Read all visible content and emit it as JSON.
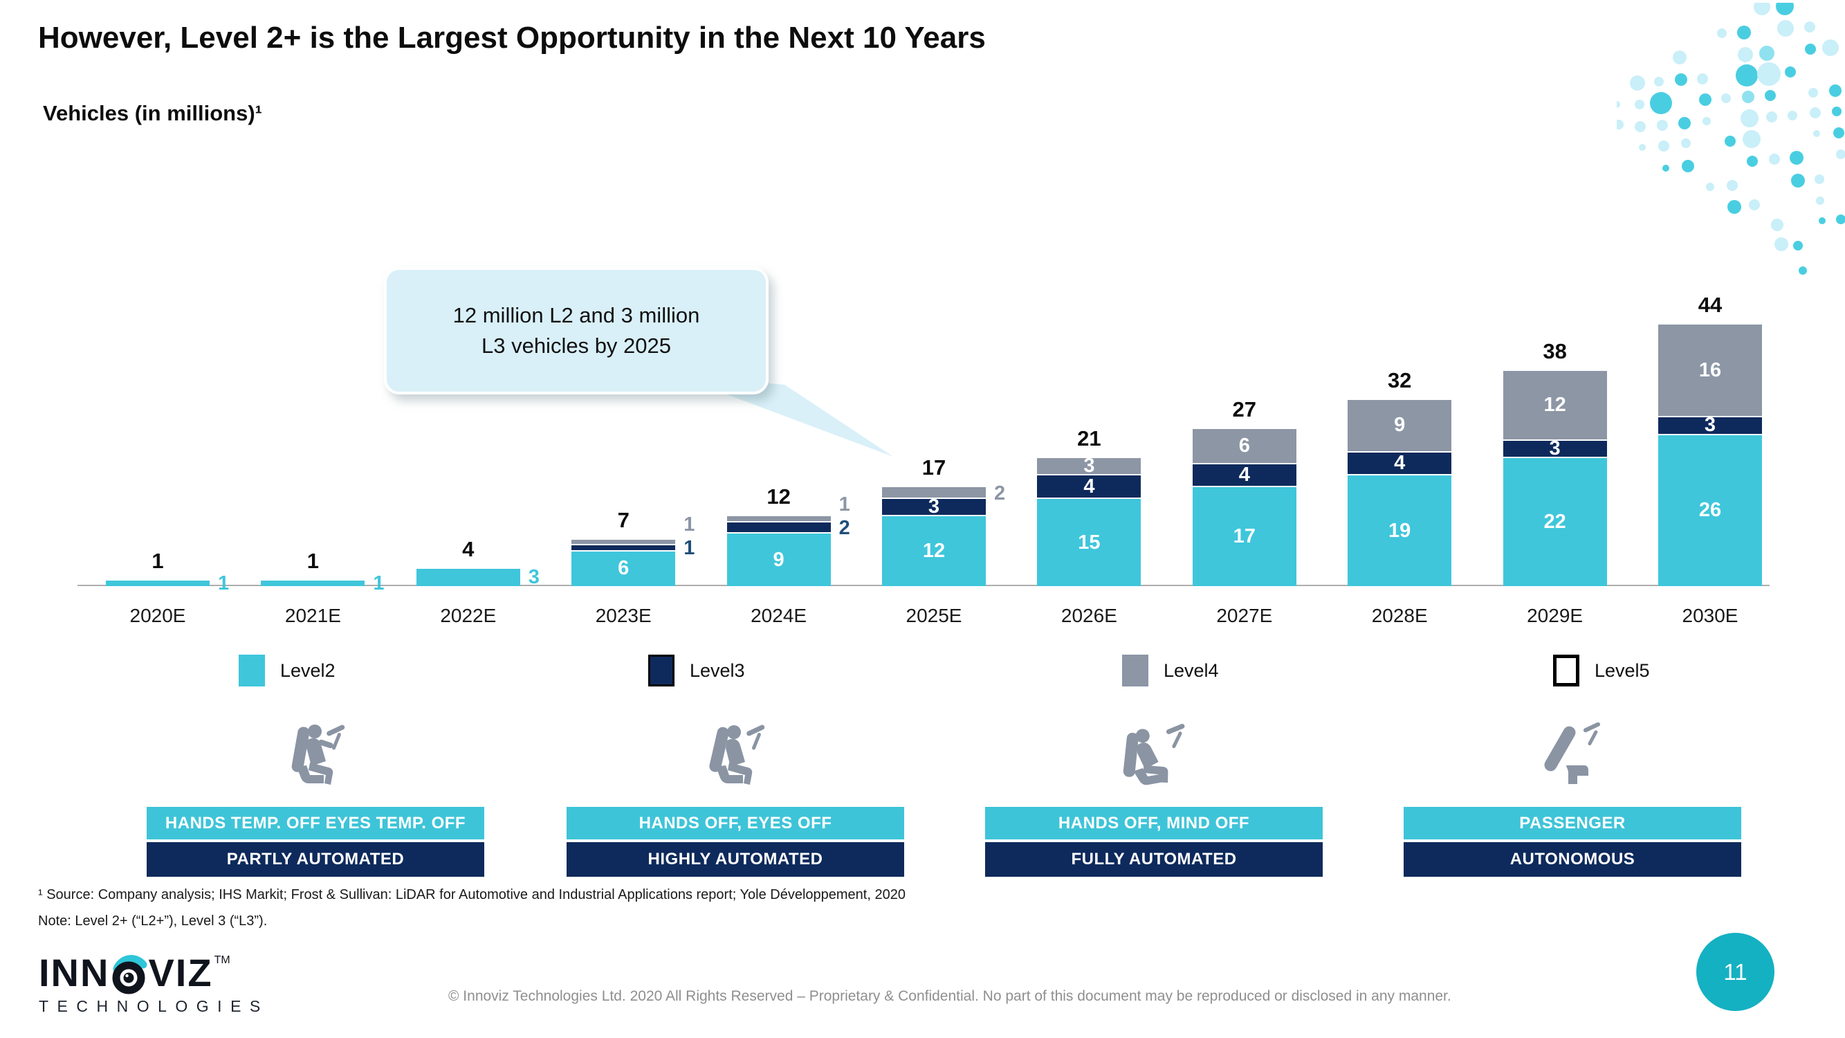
{
  "slide": {
    "title": "However, Level 2+ is the Largest Opportunity in the Next 10 Years",
    "page_number": "11",
    "footnote_source": "¹ Source: Company analysis; IHS Markit; Frost & Sullivan: LiDAR for Automotive and Industrial Applications report; Yole Développement, 2020",
    "footnote_note": "Note: Level 2+ (“L2+”), Level 3 (“L3”).",
    "copyright": "© Innoviz Technologies Ltd. 2020 All Rights Reserved – Proprietary & Confidential. No part of this document may be reproduced or disclosed in any manner.",
    "logo": {
      "brand_left": "INN",
      "brand_right": "VIZ",
      "tm": "TM",
      "sub": "TECHNOLOGIES"
    }
  },
  "chart_data": {
    "type": "bar",
    "stacked": true,
    "title": "Vehicles (in millions)¹",
    "callout": {
      "line1": "12 million L2 and 3 million",
      "line2": "L3 vehicles by 2025"
    },
    "categories": [
      "2020E",
      "2021E",
      "2022E",
      "2023E",
      "2024E",
      "2025E",
      "2026E",
      "2027E",
      "2028E",
      "2029E",
      "2030E"
    ],
    "totals": [
      1,
      1,
      4,
      7,
      12,
      17,
      21,
      27,
      32,
      38,
      44
    ],
    "series": [
      {
        "name": "Level2",
        "color": "#3FC6DB",
        "label_color_outside": "#3FC6DB",
        "values": [
          1,
          1,
          3,
          6,
          9,
          12,
          15,
          17,
          19,
          22,
          26
        ],
        "label_pos": [
          "out",
          "out",
          "out",
          "in",
          "in",
          "in",
          "in",
          "in",
          "in",
          "in",
          "in"
        ]
      },
      {
        "name": "Level3",
        "color": "#0E2A5C",
        "label_color_outside": "#1F4E79",
        "values": [
          0,
          0,
          0,
          1,
          2,
          3,
          4,
          4,
          4,
          3,
          3
        ],
        "label_pos": [
          null,
          null,
          null,
          "out",
          "out",
          "in",
          "in",
          "in",
          "in",
          "in",
          "in"
        ]
      },
      {
        "name": "Level4",
        "color": "#8C96A5",
        "label_color_outside": "#8C96A5",
        "values": [
          0,
          0,
          0,
          1,
          1,
          2,
          3,
          6,
          9,
          12,
          16
        ],
        "label_pos": [
          null,
          null,
          null,
          "out",
          "out",
          "out",
          "in",
          "in",
          "in",
          "in",
          "in"
        ]
      },
      {
        "name": "Level5",
        "color": "#FFFFFF",
        "label_color_outside": "#000000",
        "values": [
          0,
          0,
          0,
          0,
          0,
          0,
          0,
          0,
          0,
          0,
          0
        ],
        "label_pos": [
          null,
          null,
          null,
          null,
          null,
          null,
          null,
          null,
          null,
          null,
          null
        ]
      }
    ],
    "legend": [
      {
        "label": "Level2",
        "color": "#3FC6DB",
        "border": "none"
      },
      {
        "label": "Level3",
        "color": "#0E2A5C",
        "border": "3px solid #000000"
      },
      {
        "label": "Level4",
        "color": "#8C96A5",
        "border": "none"
      },
      {
        "label": "Level5",
        "color": "#FFFFFF",
        "border": "5px solid #000000"
      }
    ],
    "xlabel": "",
    "ylabel": "Vehicles (in millions)",
    "grid": false,
    "legend_position": "bottom"
  },
  "automation_levels": [
    {
      "icon": "driver-attentive-seat-icon",
      "top_label": "HANDS TEMP. OFF EYES TEMP. OFF",
      "bottom_label": "PARTLY AUTOMATED"
    },
    {
      "icon": "driver-hands-off-seat-icon",
      "top_label": "HANDS OFF, EYES OFF",
      "bottom_label": "HIGHLY AUTOMATED"
    },
    {
      "icon": "driver-reclined-seat-icon",
      "top_label": "HANDS OFF, MIND OFF",
      "bottom_label": "FULLY AUTOMATED"
    },
    {
      "icon": "empty-seat-icon",
      "top_label": "PASSENGER",
      "bottom_label": "AUTONOMOUS"
    }
  ],
  "colors": {
    "accent_teal": "#3EC4D8",
    "navy": "#0E2A5C",
    "gray": "#8C96A5",
    "callout_bg": "#D9F0F8",
    "page_circle": "#14B1C2",
    "icon_gray": "#8A94A3"
  }
}
